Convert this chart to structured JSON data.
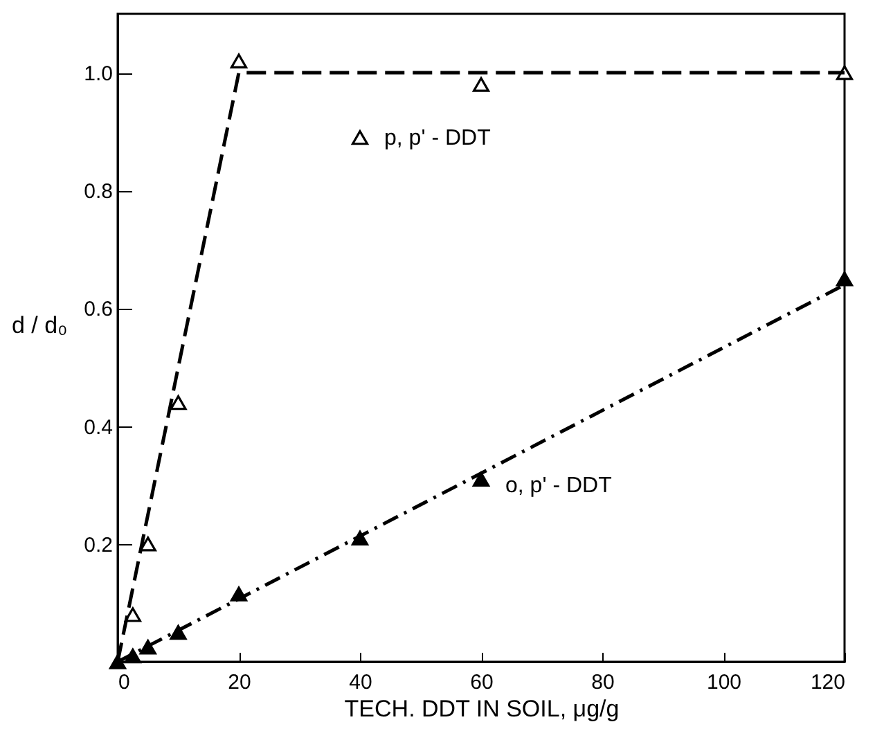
{
  "chart_data": {
    "type": "scatter",
    "xlabel": "TECH. DDT IN SOIL, μg/g",
    "ylabel": "d / d₀",
    "xlim": [
      0,
      120
    ],
    "ylim": [
      0,
      1.1
    ],
    "xticks": [
      0,
      20,
      40,
      60,
      80,
      100,
      120
    ],
    "yticks": [
      0.2,
      0.4,
      0.6,
      0.8,
      {
        "value": 1,
        "label": "1.0"
      }
    ],
    "grid": false,
    "series": [
      {
        "name": "p, p' - DDT",
        "marker": "triangle",
        "color": "#ffffff",
        "x": [
          2.5,
          5,
          10,
          20,
          40,
          60,
          120
        ],
        "values": [
          0.08,
          0.2,
          0.44,
          1.02,
          0.89,
          0.98,
          1.0
        ]
      },
      {
        "name": "o, p' - DDT",
        "marker": "triangle",
        "color": "#000000",
        "x": [
          0,
          2.5,
          5,
          10,
          20,
          40,
          60,
          120
        ],
        "values": [
          0,
          0.01,
          0.025,
          0.05,
          0.115,
          0.21,
          0.31,
          0.65
        ]
      },
      {
        "type": "line",
        "marker": "none",
        "line_style": "dashed",
        "color": "#000000",
        "x": [
          0,
          20,
          120
        ],
        "values": [
          0,
          1.0,
          1.0
        ]
      },
      {
        "type": "line",
        "marker": "none",
        "line_style": "dashdot",
        "color": "#000000",
        "x": [
          0,
          120
        ],
        "values": [
          0,
          0.64
        ]
      }
    ]
  }
}
